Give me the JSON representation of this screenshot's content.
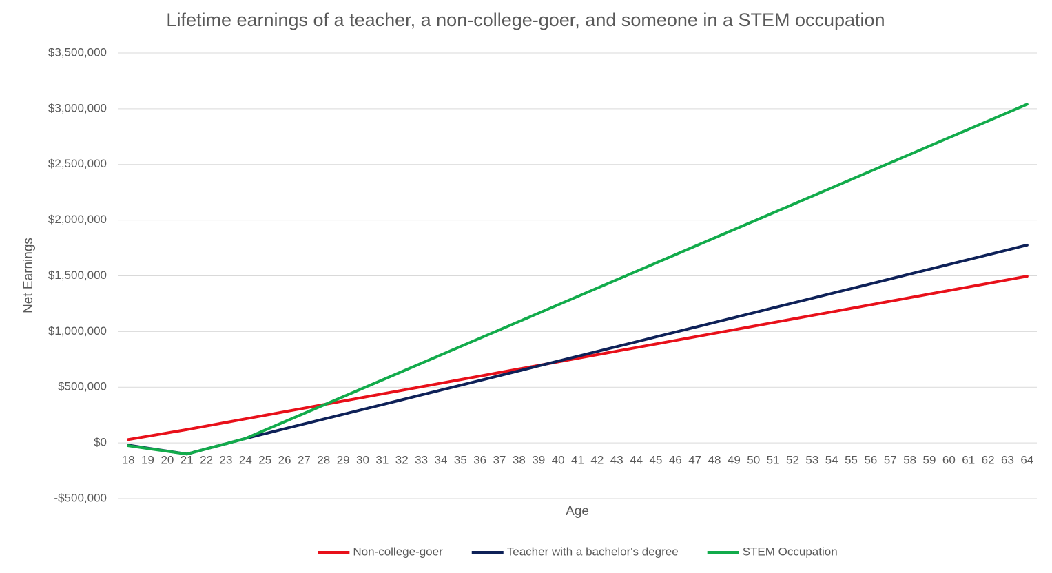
{
  "chart_data": {
    "type": "line",
    "title": "Lifetime earnings of a teacher, a non-college-goer, and someone in a STEM occupation",
    "x_label": "Age",
    "y_label": "Net Earnings",
    "categories": [
      18,
      19,
      20,
      21,
      22,
      23,
      24,
      25,
      26,
      27,
      28,
      29,
      30,
      31,
      32,
      33,
      34,
      35,
      36,
      37,
      38,
      39,
      40,
      41,
      42,
      43,
      44,
      45,
      46,
      47,
      48,
      49,
      50,
      51,
      52,
      53,
      54,
      55,
      56,
      57,
      58,
      59,
      60,
      61,
      62,
      63,
      64
    ],
    "series": [
      {
        "name": "Non-college-goer",
        "color": "#e8101a",
        "values": [
          30000,
          60000,
          90000,
          120000,
          152000,
          184000,
          216000,
          248000,
          280000,
          312000,
          344000,
          376000,
          408000,
          440000,
          472000,
          504000,
          536000,
          568000,
          600000,
          632000,
          664000,
          696000,
          728000,
          760000,
          792000,
          824000,
          856000,
          888000,
          920000,
          952000,
          984000,
          1016000,
          1048000,
          1080000,
          1112000,
          1144000,
          1176000,
          1208000,
          1240000,
          1272000,
          1304000,
          1336000,
          1368000,
          1400000,
          1432000,
          1464000,
          1496000
        ]
      },
      {
        "name": "Teacher with a bachelor's degree",
        "color": "#0e2158",
        "values": [
          -20000,
          -47000,
          -73000,
          -100000,
          -53000,
          -7000,
          40000,
          83400,
          126800,
          170200,
          213600,
          257000,
          300400,
          343800,
          387200,
          430600,
          474000,
          517400,
          560800,
          604200,
          647600,
          691000,
          734400,
          777800,
          821200,
          864600,
          908000,
          951400,
          994800,
          1038200,
          1081600,
          1125000,
          1168400,
          1211800,
          1255200,
          1298600,
          1342000,
          1385400,
          1428800,
          1472200,
          1515600,
          1559000,
          1602400,
          1645800,
          1689200,
          1732600,
          1776000
        ]
      },
      {
        "name": "STEM Occupation",
        "color": "#12ab4b",
        "values": [
          -25000,
          -50000,
          -75000,
          -100000,
          -53000,
          -7000,
          40000,
          115000,
          190000,
          265000,
          340000,
          415000,
          490000,
          565000,
          640000,
          715000,
          790000,
          865000,
          940000,
          1015000,
          1090000,
          1165000,
          1240000,
          1315000,
          1390000,
          1465000,
          1540000,
          1615000,
          1690000,
          1765000,
          1840000,
          1915000,
          1990000,
          2065000,
          2140000,
          2215000,
          2290000,
          2365000,
          2440000,
          2515000,
          2590000,
          2665000,
          2740000,
          2815000,
          2890000,
          2965000,
          3040000
        ]
      }
    ],
    "ylim": [
      -500000,
      3500000
    ],
    "yticks": [
      {
        "value": -500000,
        "label": "-$500,000"
      },
      {
        "value": 0,
        "label": "$0"
      },
      {
        "value": 500000,
        "label": "$500,000"
      },
      {
        "value": 1000000,
        "label": "$1,000,000"
      },
      {
        "value": 1500000,
        "label": "$1,500,000"
      },
      {
        "value": 2000000,
        "label": "$2,000,000"
      },
      {
        "value": 2500000,
        "label": "$2,500,000"
      },
      {
        "value": 3000000,
        "label": "$3,000,000"
      },
      {
        "value": 3500000,
        "label": "$3,500,000"
      }
    ],
    "grid": true,
    "legend": "bottom"
  }
}
